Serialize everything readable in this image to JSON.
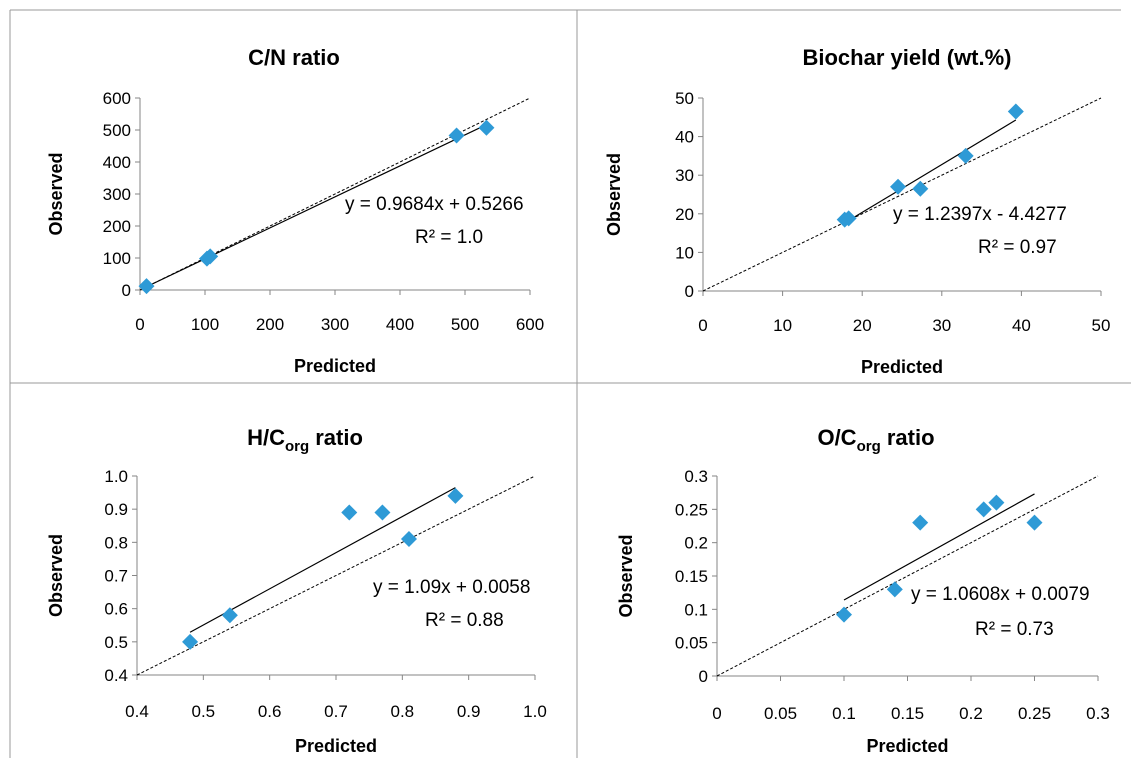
{
  "colors": {
    "marker": "#2e9ad6",
    "trend": "#000000",
    "identity": "#000000",
    "frame": "#999999"
  },
  "chart_data": [
    {
      "type": "scatter",
      "title": "C/N ratio",
      "title_sub": "",
      "title_suffix": "",
      "xlabel": "Predicted",
      "ylabel": "Observed",
      "xlim": [
        0,
        600
      ],
      "ylim": [
        0,
        600
      ],
      "xticks": [
        "0",
        "100",
        "200",
        "300",
        "400",
        "500",
        "600"
      ],
      "yticks": [
        "0",
        "100",
        "200",
        "300",
        "400",
        "500",
        "600"
      ],
      "points": {
        "x": [
          10,
          103,
          108,
          487,
          533
        ],
        "y": [
          12,
          98,
          105,
          483,
          507
        ]
      },
      "trendline": {
        "slope": 0.9684,
        "intercept": 0.5266,
        "x_range": [
          10,
          533
        ]
      },
      "equation": "y = 0.9684x + 0.5266",
      "r2": "R² = 1.0",
      "identity_line": true
    },
    {
      "type": "scatter",
      "title": "Biochar yield (wt.%)",
      "title_sub": "",
      "title_suffix": "",
      "xlabel": "Predicted",
      "ylabel": "Observed",
      "xlim": [
        0,
        50
      ],
      "ylim": [
        0,
        50
      ],
      "xticks": [
        "0",
        "10",
        "20",
        "30",
        "40",
        "50"
      ],
      "yticks": [
        "0",
        "10",
        "20",
        "30",
        "40",
        "50"
      ],
      "points": {
        "x": [
          17.8,
          18.3,
          24.5,
          27.3,
          33.0,
          39.3
        ],
        "y": [
          18.5,
          18.8,
          27.0,
          26.5,
          35.0,
          46.5
        ]
      },
      "trendline": {
        "slope": 1.2397,
        "intercept": -4.4277,
        "x_range": [
          17.8,
          39.3
        ]
      },
      "equation": "y = 1.2397x - 4.4277",
      "r2": "R² = 0.97",
      "identity_line": true
    },
    {
      "type": "scatter",
      "title": "H/C",
      "title_sub": "org",
      "title_suffix": " ratio",
      "xlabel": "Predicted",
      "ylabel": "Observed",
      "xlim": [
        0.4,
        1.0
      ],
      "ylim": [
        0.4,
        1.0
      ],
      "xticks": [
        "0.4",
        "0.5",
        "0.6",
        "0.7",
        "0.8",
        "0.9",
        "1.0"
      ],
      "yticks": [
        "0.4",
        "0.5",
        "0.6",
        "0.7",
        "0.8",
        "0.9",
        "1.0"
      ],
      "points": {
        "x": [
          0.48,
          0.54,
          0.72,
          0.77,
          0.81,
          0.88
        ],
        "y": [
          0.5,
          0.58,
          0.89,
          0.89,
          0.81,
          0.94
        ]
      },
      "trendline": {
        "slope": 1.09,
        "intercept": 0.0058,
        "x_range": [
          0.48,
          0.88
        ]
      },
      "equation": "y = 1.09x + 0.0058",
      "r2": "R² = 0.88",
      "identity_line": true
    },
    {
      "type": "scatter",
      "title": "O/C",
      "title_sub": "org",
      "title_suffix": " ratio",
      "xlabel": "Predicted",
      "ylabel": "Observed",
      "xlim": [
        0,
        0.3
      ],
      "ylim": [
        0,
        0.3
      ],
      "xticks": [
        "0",
        "0.05",
        "0.1",
        "0.15",
        "0.2",
        "0.25",
        "0.3"
      ],
      "yticks": [
        "0",
        "0.05",
        "0.1",
        "0.15",
        "0.2",
        "0.25",
        "0.3"
      ],
      "points": {
        "x": [
          0.1,
          0.14,
          0.16,
          0.21,
          0.22,
          0.25
        ],
        "y": [
          0.092,
          0.13,
          0.23,
          0.25,
          0.26,
          0.23
        ]
      },
      "trendline": {
        "slope": 1.0608,
        "intercept": 0.0079,
        "x_range": [
          0.1,
          0.25
        ]
      },
      "equation": "y = 1.0608x + 0.0079",
      "r2": "R² = 0.73",
      "identity_line": true
    }
  ]
}
